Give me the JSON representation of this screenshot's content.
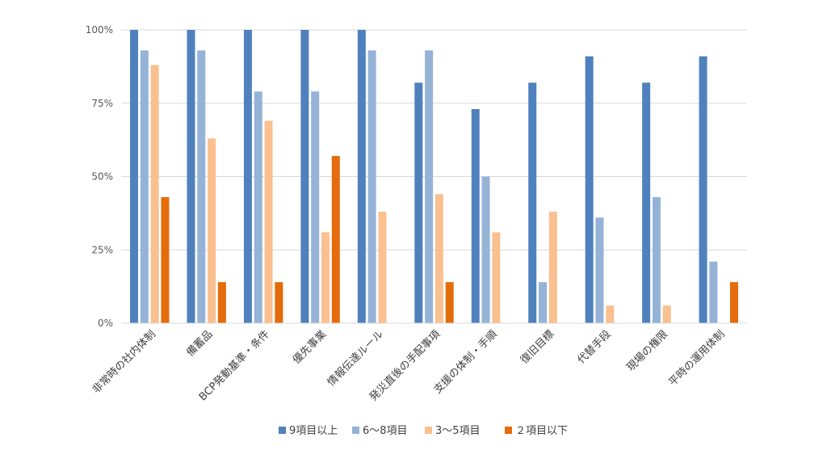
{
  "chart_data": {
    "type": "bar",
    "categories": [
      "非常時の社内体制",
      "備蓄品",
      "BCP発動基準・条件",
      "優先事業",
      "情報伝達ルール",
      "発災直後の手配事項",
      "支援の体制・手順",
      "復旧目標",
      "代替手段",
      "現場の権限",
      "平時の運用体制"
    ],
    "series": [
      {
        "name": "9項目以上",
        "color": "#4f81bd",
        "values": [
          100,
          100,
          100,
          100,
          100,
          82,
          73,
          82,
          91,
          82,
          91
        ]
      },
      {
        "name": "6～8項目",
        "color": "#95b3d7",
        "values": [
          93,
          93,
          79,
          79,
          93,
          93,
          50,
          14,
          36,
          43,
          21
        ]
      },
      {
        "name": "3～5項目",
        "color": "#fac090",
        "values": [
          88,
          63,
          69,
          31,
          38,
          44,
          31,
          38,
          6,
          6,
          0
        ]
      },
      {
        "name": "２項目以下",
        "color": "#e46c0a",
        "values": [
          43,
          14,
          14,
          57,
          0,
          14,
          0,
          0,
          0,
          0,
          14
        ]
      }
    ],
    "yticks": [
      "0%",
      "25%",
      "50%",
      "75%",
      "100%"
    ],
    "ylim": [
      0,
      100
    ],
    "grid": true,
    "legend": "bottom"
  }
}
